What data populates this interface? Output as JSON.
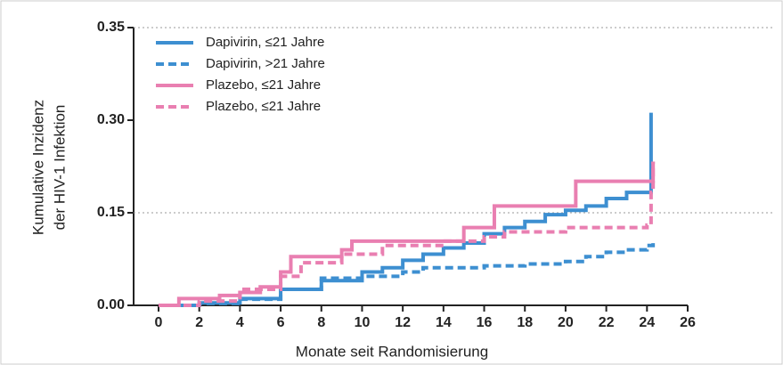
{
  "chart_data": {
    "type": "step",
    "xlabel": "Monate seit Randomisierung",
    "ylabel": [
      "Kumulative Inzidenz",
      "der HIV-1 Infektion"
    ],
    "xlim": [
      0,
      26
    ],
    "xticks": [
      0,
      2,
      4,
      6,
      8,
      10,
      12,
      14,
      16,
      18,
      20,
      22,
      24,
      26
    ],
    "ylim": [
      0,
      0.35
    ],
    "yticks": [
      {
        "value": 0,
        "label": "0.00"
      },
      {
        "value": 0.15,
        "label": "0.15"
      },
      {
        "value": 0.3,
        "label": "0.30"
      },
      {
        "value": 0.35,
        "label": "0.35"
      }
    ],
    "ygrid": [
      0.15,
      0.35
    ],
    "legend": "upper left",
    "series": [
      {
        "name": "Dapivirin, ≤21 Jahre",
        "color": "#3d8fd1",
        "dashed": false,
        "x": [
          0,
          2,
          4,
          6,
          8,
          10,
          11,
          12,
          13,
          14,
          15,
          16,
          17,
          18,
          19,
          20,
          21,
          22,
          23,
          24.2
        ],
        "values": [
          0,
          0.004,
          0.011,
          0.026,
          0.04,
          0.054,
          0.061,
          0.073,
          0.083,
          0.093,
          0.101,
          0.116,
          0.126,
          0.136,
          0.147,
          0.154,
          0.161,
          0.173,
          0.183,
          0.304
        ]
      },
      {
        "name": "Dapivirin, >21 Jahre",
        "color": "#3d8fd1",
        "dashed": true,
        "x": [
          0,
          2,
          4,
          6,
          8,
          10,
          12,
          13,
          16,
          18,
          20,
          21,
          22,
          23,
          24,
          24.3
        ],
        "values": [
          0,
          0.003,
          0.01,
          0.026,
          0.044,
          0.047,
          0.054,
          0.061,
          0.064,
          0.067,
          0.071,
          0.079,
          0.086,
          0.09,
          0.097,
          0.104
        ]
      },
      {
        "name": "Plazebo, ≤21 Jahre",
        "color": "#e97fb1",
        "dashed": false,
        "x": [
          0,
          1,
          3,
          4,
          5,
          6,
          6.5,
          9,
          9.5,
          15,
          16.5,
          20.5,
          24.3
        ],
        "values": [
          0,
          0.011,
          0.016,
          0.021,
          0.03,
          0.054,
          0.079,
          0.09,
          0.104,
          0.126,
          0.161,
          0.201,
          0.233
        ]
      },
      {
        "name": "Plazebo, ≤21 Jahre",
        "color": "#e97fb1",
        "dashed": true,
        "x": [
          0,
          2,
          4,
          6,
          7,
          9,
          11,
          14,
          16,
          17,
          20,
          24,
          24.2,
          24.3
        ],
        "values": [
          0,
          0.007,
          0.026,
          0.047,
          0.069,
          0.083,
          0.097,
          0.104,
          0.111,
          0.119,
          0.126,
          0.13,
          0.183,
          0.233
        ]
      }
    ]
  }
}
